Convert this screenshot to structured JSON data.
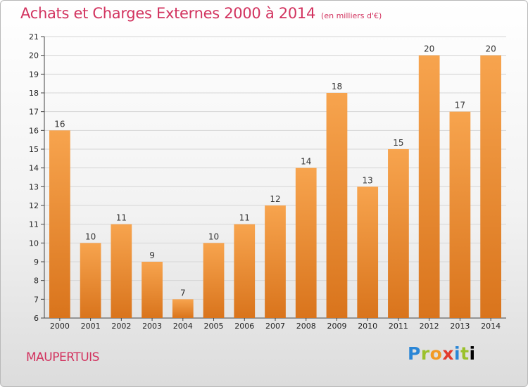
{
  "chart_data": {
    "type": "bar",
    "title": "Achats et Charges Externes 2000 à 2014",
    "subtitle": "(en milliers d'€)",
    "categories": [
      "2000",
      "2001",
      "2002",
      "2003",
      "2004",
      "2005",
      "2006",
      "2007",
      "2008",
      "2009",
      "2010",
      "2011",
      "2012",
      "2013",
      "2014"
    ],
    "values": [
      16,
      10,
      11,
      9,
      7,
      10,
      11,
      12,
      14,
      18,
      13,
      15,
      20,
      17,
      20
    ],
    "ylim": [
      6,
      21
    ],
    "yticks": [
      6,
      7,
      8,
      9,
      10,
      11,
      12,
      13,
      14,
      15,
      16,
      17,
      18,
      19,
      20,
      21
    ],
    "grid": true,
    "bar_color": "#f29b3b",
    "data_labels": true
  },
  "footer": {
    "town": "MAUPERTUIS",
    "logo_letters": [
      "P",
      "r",
      "o",
      "x",
      "i",
      "t",
      "i"
    ]
  }
}
